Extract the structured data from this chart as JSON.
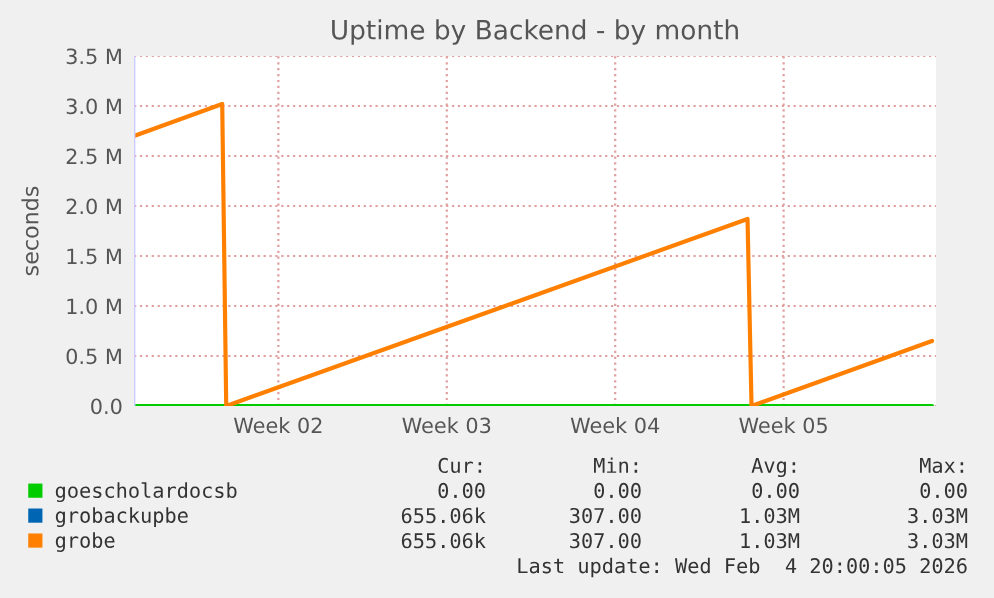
{
  "chart_data": {
    "type": "line",
    "title": "Uptime by Backend - by month",
    "ylabel": "seconds",
    "xlim": [
      "2026-01-02T12:00",
      "2026-02-04T20:00"
    ],
    "xticks": [
      {
        "value": "2026-01-08T12:00",
        "label": "Week 02"
      },
      {
        "value": "2026-01-15T12:00",
        "label": "Week 03"
      },
      {
        "value": "2026-01-22T12:00",
        "label": "Week 04"
      },
      {
        "value": "2026-01-29T12:00",
        "label": "Week 05"
      }
    ],
    "ylim": [
      0,
      3500000
    ],
    "yticks": [
      {
        "value": 0,
        "label": "0.0"
      },
      {
        "value": 500000,
        "label": "0.5 M"
      },
      {
        "value": 1000000,
        "label": "1.0 M"
      },
      {
        "value": 1500000,
        "label": "1.5 M"
      },
      {
        "value": 2000000,
        "label": "2.0 M"
      },
      {
        "value": 2500000,
        "label": "2.5 M"
      },
      {
        "value": 3000000,
        "label": "3.0 M"
      },
      {
        "value": 3500000,
        "label": "3.5 M"
      }
    ],
    "grid": true,
    "legend": "bottom",
    "marker": "none",
    "line_style": "solid",
    "series": [
      {
        "name": "goescholardocsb",
        "color": "#00cc00",
        "x": [
          "2026-01-02T12:00",
          "2026-02-04T16:00"
        ],
        "values": [
          0,
          0
        ]
      },
      {
        "name": "grobackupbe",
        "color": "#0066b3"
      },
      {
        "name": "grobe",
        "color": "#ff8000",
        "x": [
          "2026-01-02T12:00",
          "2026-01-06T04:00",
          "2026-01-06T08:00",
          "2026-01-28T00:00",
          "2026-01-28T04:00",
          "2026-02-04T16:00"
        ],
        "values": [
          2700000,
          3020000,
          0,
          1870000,
          0,
          650000
        ]
      }
    ],
    "annotations": [
      "Cur:",
      "Min:",
      "Avg:",
      "Max:",
      "0.00",
      "0.00",
      "0.00",
      "0.00",
      "655.06k",
      "307.00",
      "1.03M",
      "3.03M",
      "655.06k",
      "307.00",
      "1.03M",
      "3.03M",
      "Last update: Wed Feb  4 20:00:05 2026"
    ]
  }
}
